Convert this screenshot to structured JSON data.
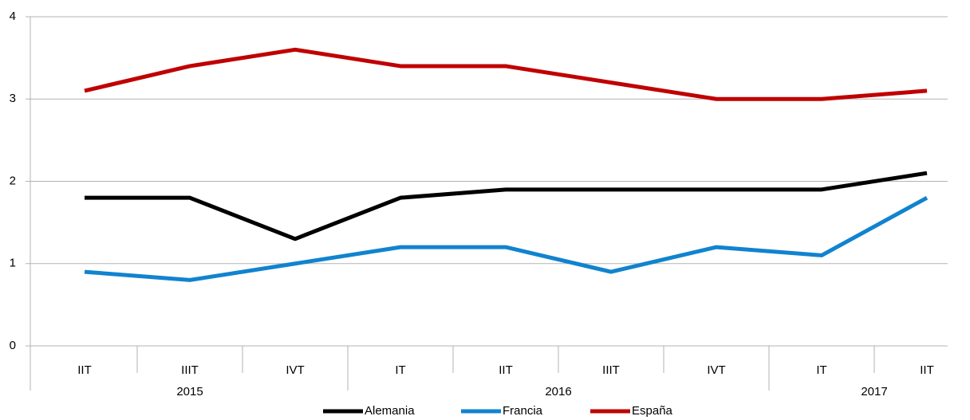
{
  "chart_data": {
    "type": "line",
    "categories": [
      "IIT",
      "IIIT",
      "IVT",
      "IT",
      "IIT",
      "IIIT",
      "IVT",
      "IT",
      "IIT"
    ],
    "x_groups": [
      {
        "label": "2015",
        "count": 3
      },
      {
        "label": "2016",
        "count": 4
      },
      {
        "label": "2017",
        "count": 2
      }
    ],
    "series": [
      {
        "name": "Alemania",
        "color": "#000000",
        "values": [
          1.8,
          1.8,
          1.3,
          1.8,
          1.9,
          1.9,
          1.9,
          1.9,
          2.1
        ]
      },
      {
        "name": "Francia",
        "color": "#1183cf",
        "values": [
          0.9,
          0.8,
          1.0,
          1.2,
          1.2,
          0.9,
          1.2,
          1.1,
          1.8
        ]
      },
      {
        "name": "España",
        "color": "#c00000",
        "values": [
          3.1,
          3.4,
          3.6,
          3.4,
          3.4,
          3.2,
          3.0,
          3.0,
          3.1
        ]
      }
    ],
    "ylim": [
      0,
      4
    ],
    "yticks": [
      0,
      1,
      2,
      3,
      4
    ],
    "grid": true,
    "legend": "bottom"
  }
}
